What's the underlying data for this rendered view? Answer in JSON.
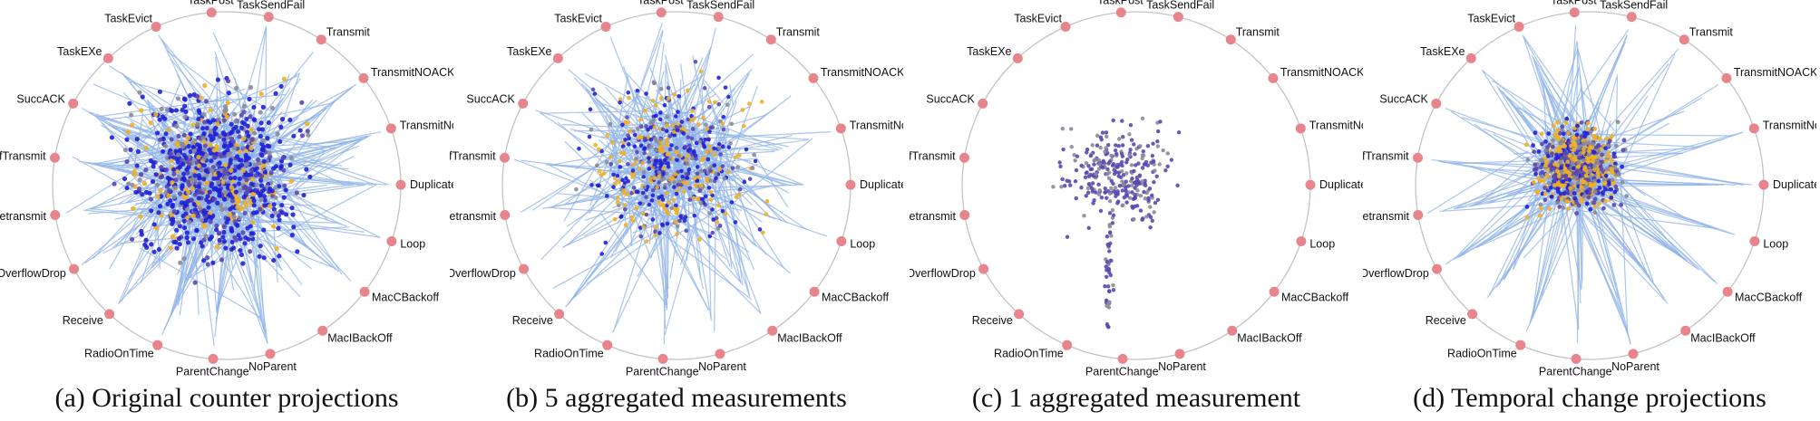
{
  "panels": [
    {
      "id": "a",
      "caption": "(a) Original counter projections",
      "style": "dense"
    },
    {
      "id": "b",
      "caption": "(b) 5 aggregated measurements",
      "style": "medium"
    },
    {
      "id": "c",
      "caption": "(c) 1 aggregated measurement",
      "style": "points"
    },
    {
      "id": "d",
      "caption": "(d) Temporal change projections",
      "style": "hub"
    }
  ],
  "counters": [
    "TaskPost",
    "TaskSendFail",
    "Transmit",
    "TransmitNOACKDROP",
    "TransmitNoAckRetrans",
    "Duplicate",
    "Loop",
    "MacCBackoff",
    "MacIBackOff",
    "NoParent",
    "ParentChange",
    "RadioOnTime",
    "Receive",
    "ReceiveOverflowDrop",
    "Retransmit",
    "SelfTransmit",
    "SuccACK",
    "TaskEXe",
    "TaskEvict"
  ],
  "colors": {
    "anchor": "#e8848c",
    "ring": "#c4c4c4",
    "edge": "#8fb3e8",
    "point_blue": "#2020d8",
    "point_orange": "#f0b020",
    "point_purple": "#5a48b0",
    "point_gray": "#8a8a9a"
  }
}
